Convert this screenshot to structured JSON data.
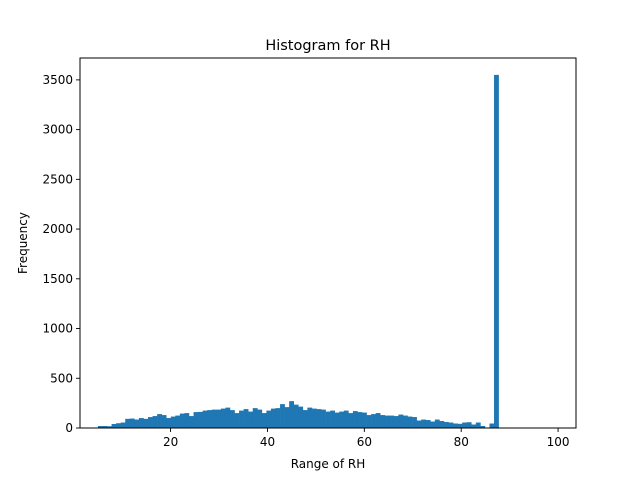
{
  "chart_data": {
    "type": "bar",
    "title": "Histogram for RH",
    "xlabel": "Range of RH",
    "ylabel": "Frequency",
    "xlim": [
      1.3,
      103.7
    ],
    "ylim": [
      0,
      3720
    ],
    "grid": false,
    "legend": "none",
    "bar_color": "#1f77b4",
    "bin_start": 5,
    "bin_width": 0.94,
    "x_ticks": [
      20,
      40,
      60,
      80,
      100
    ],
    "y_ticks": [
      0,
      500,
      1000,
      1500,
      2000,
      2500,
      3000,
      3500
    ],
    "values": [
      20,
      20,
      18,
      40,
      48,
      55,
      92,
      95,
      85,
      100,
      92,
      110,
      120,
      140,
      130,
      100,
      115,
      125,
      145,
      150,
      120,
      160,
      162,
      175,
      180,
      185,
      185,
      195,
      205,
      180,
      150,
      175,
      190,
      165,
      200,
      185,
      150,
      175,
      195,
      200,
      240,
      210,
      270,
      235,
      215,
      180,
      205,
      195,
      190,
      185,
      165,
      175,
      155,
      165,
      175,
      150,
      170,
      160,
      155,
      130,
      140,
      150,
      130,
      125,
      125,
      120,
      135,
      125,
      115,
      110,
      75,
      85,
      80,
      65,
      85,
      70,
      60,
      55,
      45,
      42,
      55,
      58,
      35,
      55,
      20,
      5,
      45,
      3550
    ]
  }
}
